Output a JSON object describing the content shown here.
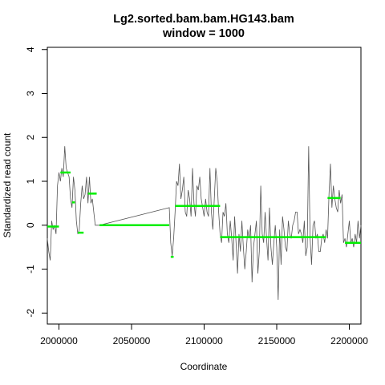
{
  "chart_data": {
    "type": "line",
    "title": "Lg2.sorted.bam.bam.HG143.bam",
    "subtitle": "window = 1000",
    "xlabel": "Coordinate",
    "ylabel": "Standardized read count",
    "xlim": [
      1992000,
      2208000
    ],
    "ylim": [
      -2.25,
      4.05
    ],
    "x_ticks": [
      2000000,
      2050000,
      2100000,
      2150000,
      2200000
    ],
    "x_tick_labels": [
      "2000000",
      "2050000",
      "2100000",
      "2150000",
      "2200000"
    ],
    "y_ticks": [
      -2,
      -1,
      0,
      1,
      2,
      3,
      4
    ],
    "y_tick_labels": [
      "-2",
      "-1",
      "0",
      "1",
      "2",
      "3",
      "4"
    ],
    "grid": false,
    "colors": {
      "read_count": "#555555",
      "segments": "#00ee00"
    },
    "series": [
      {
        "values_x": [
          1992000,
          1993000,
          1994000,
          1995000,
          1996000,
          1997000,
          1998000,
          1999000,
          2000000,
          2001000,
          2002000,
          2003000,
          2004000,
          2005000,
          2006000,
          2007000,
          2008000,
          2009000,
          2010000,
          2011000,
          2012000,
          2013000,
          2014000,
          2015000,
          2016000,
          2017000,
          2018000,
          2019000,
          2020000,
          2021000,
          2022000,
          2023000,
          2024000,
          2025000,
          2026000,
          2027000,
          2028000,
          2076000,
          2077000,
          2078000,
          2079000,
          2080000,
          2081000,
          2082000,
          2083000,
          2084000,
          2085000,
          2086000,
          2087000,
          2088000,
          2089000,
          2090000,
          2091000,
          2092000,
          2093000,
          2094000,
          2095000,
          2096000,
          2097000,
          2098000,
          2099000,
          2100000,
          2101000,
          2102000,
          2103000,
          2104000,
          2105000,
          2106000,
          2107000,
          2108000,
          2109000,
          2110000,
          2111000,
          2112000,
          2113000,
          2114000,
          2115000,
          2116000,
          2117000,
          2118000,
          2119000,
          2120000,
          2121000,
          2122000,
          2123000,
          2124000,
          2125000,
          2126000,
          2127000,
          2128000,
          2129000,
          2130000,
          2131000,
          2132000,
          2133000,
          2134000,
          2135000,
          2136000,
          2137000,
          2138000,
          2139000,
          2140000,
          2141000,
          2142000,
          2143000,
          2144000,
          2145000,
          2146000,
          2147000,
          2148000,
          2149000,
          2150000,
          2151000,
          2152000,
          2153000,
          2154000,
          2155000,
          2156000,
          2157000,
          2158000,
          2159000,
          2160000,
          2161000,
          2162000,
          2163000,
          2164000,
          2165000,
          2166000,
          2167000,
          2168000,
          2169000,
          2170000,
          2171000,
          2172000,
          2173000,
          2174000,
          2175000,
          2176000,
          2177000,
          2178000,
          2179000,
          2180000,
          2181000,
          2182000,
          2183000,
          2184000,
          2185000,
          2186000,
          2187000,
          2188000,
          2189000,
          2190000,
          2191000,
          2192000,
          2193000,
          2194000,
          2195000,
          2196000,
          2197000,
          2198000,
          2199000,
          2200000,
          2201000,
          2202000,
          2203000,
          2204000,
          2205000,
          2206000,
          2207000,
          2208000
        ],
        "values_y": [
          -0.3,
          -0.6,
          -0.8,
          0.1,
          -0.1,
          0.0,
          -0.2,
          0.9,
          1.2,
          1.0,
          1.3,
          1.1,
          1.8,
          1.3,
          1.2,
          1.1,
          0.6,
          0.4,
          1.1,
          0.8,
          0.1,
          -0.2,
          -0.1,
          0.5,
          0.9,
          0.6,
          0.7,
          1.1,
          0.5,
          1.1,
          0.5,
          0.6,
          0.3,
          0.0,
          0.0,
          0.0,
          0.0,
          0.4,
          -0.4,
          -0.7,
          -0.3,
          0.3,
          1.0,
          0.9,
          1.4,
          0.6,
          0.8,
          1.1,
          0.3,
          0.2,
          0.8,
          0.6,
          0.2,
          1.3,
          0.5,
          0.2,
          0.9,
          0.8,
          1.1,
          0.6,
          0.4,
          0.2,
          0.6,
          0.3,
          0.2,
          1.3,
          0.3,
          -0.1,
          0.6,
          1.3,
          1.0,
          0.3,
          -0.2,
          -0.4,
          0.3,
          0.2,
          0.5,
          -0.2,
          -0.4,
          0.1,
          -0.3,
          -0.8,
          0.2,
          -0.4,
          -1.1,
          -0.2,
          -0.6,
          0.1,
          -0.5,
          -1.0,
          -0.6,
          -0.1,
          -0.3,
          0.0,
          -1.3,
          -0.5,
          -0.2,
          0.1,
          -1.1,
          -0.6,
          0.9,
          -0.2,
          -0.4,
          0.3,
          -0.3,
          -0.8,
          0.4,
          -0.5,
          -0.9,
          -0.4,
          0.0,
          -0.5,
          -1.7,
          -0.1,
          -0.9,
          0.2,
          -0.1,
          -0.5,
          -0.6,
          0.1,
          -0.2,
          -0.3,
          0.0,
          0.1,
          0.3,
          0.3,
          -0.2,
          -0.1,
          -0.2,
          -0.4,
          0.1,
          -0.7,
          -0.5,
          1.8,
          -0.3,
          -0.9,
          0.0,
          0.1,
          -0.3,
          -0.2,
          -0.6,
          -0.6,
          -0.3,
          -0.2,
          -0.4,
          -0.1,
          -0.3,
          0.7,
          1.4,
          0.4,
          0.9,
          0.6,
          0.4,
          0.3,
          0.8,
          0.5,
          0.7,
          -0.4,
          -0.3,
          -0.5,
          -0.2,
          0.1,
          -0.4,
          -0.3,
          -0.5,
          -0.2,
          -0.4,
          0.1,
          -0.3,
          0.0
        ]
      },
      {
        "segments": [
          {
            "x0": 1992000,
            "x1": 2000000,
            "y": -0.03
          },
          {
            "x0": 2001000,
            "x1": 2008000,
            "y": 1.2
          },
          {
            "x0": 2009000,
            "x1": 2011000,
            "y": 0.52
          },
          {
            "x0": 2013000,
            "x1": 2017000,
            "y": -0.17
          },
          {
            "x0": 2020000,
            "x1": 2026000,
            "y": 0.72
          },
          {
            "x0": 2028000,
            "x1": 2076000,
            "y": 0.0
          },
          {
            "x0": 2077000,
            "x1": 2079000,
            "y": -0.72
          },
          {
            "x0": 2080000,
            "x1": 2111000,
            "y": 0.44
          },
          {
            "x0": 2111000,
            "x1": 2184000,
            "y": -0.27
          },
          {
            "x0": 2185000,
            "x1": 2194000,
            "y": 0.62
          },
          {
            "x0": 2197000,
            "x1": 2208000,
            "y": -0.4
          }
        ]
      }
    ]
  }
}
